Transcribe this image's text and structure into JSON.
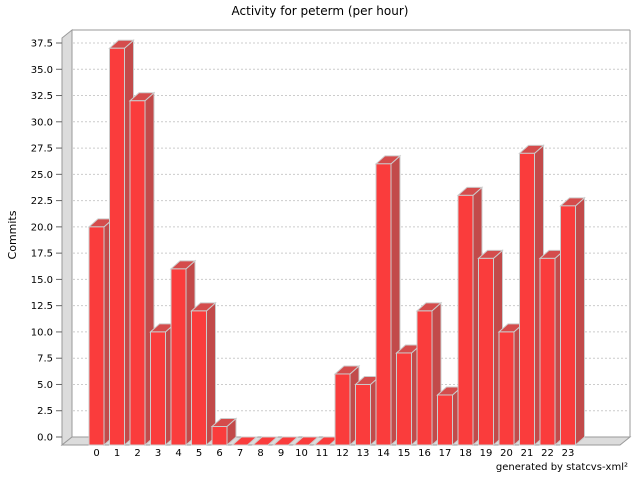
{
  "footer": "generated by statcvs-xml²",
  "chart_data": {
    "type": "bar",
    "style": "3d-vertical-bars",
    "title": "Activity for peterm (per hour)",
    "xlabel": "",
    "ylabel": "Commits",
    "categories": [
      "0",
      "1",
      "2",
      "3",
      "4",
      "5",
      "6",
      "7",
      "8",
      "9",
      "10",
      "11",
      "12",
      "13",
      "14",
      "15",
      "16",
      "17",
      "18",
      "19",
      "20",
      "21",
      "22",
      "23"
    ],
    "values": [
      20,
      37,
      32,
      10,
      16,
      12,
      1,
      0,
      0,
      0,
      0,
      0,
      6,
      5,
      26,
      8,
      12,
      4,
      23,
      17,
      10,
      27,
      17,
      22
    ],
    "yticks": [
      "0.0",
      "2.5",
      "5.0",
      "7.5",
      "10.0",
      "12.5",
      "15.0",
      "17.5",
      "20.0",
      "22.5",
      "25.0",
      "27.5",
      "30.0",
      "32.5",
      "35.0",
      "37.5"
    ],
    "ylim": [
      0,
      38.5
    ],
    "grid": "horizontal-dashed",
    "legend": "none"
  },
  "colors": {
    "bar_front": "#fa3c3c",
    "bar_side": "#c24a4a",
    "bar_top": "#d44c4c",
    "bar_outline": "#cccccc",
    "wall_fill": "#dcdcdc",
    "wall_outline": "#9a9a9a",
    "plot_border": "#9a9a9a",
    "gridline": "#cccccc",
    "tick": "#666666",
    "background": "#ffffff",
    "text": "#000000"
  }
}
